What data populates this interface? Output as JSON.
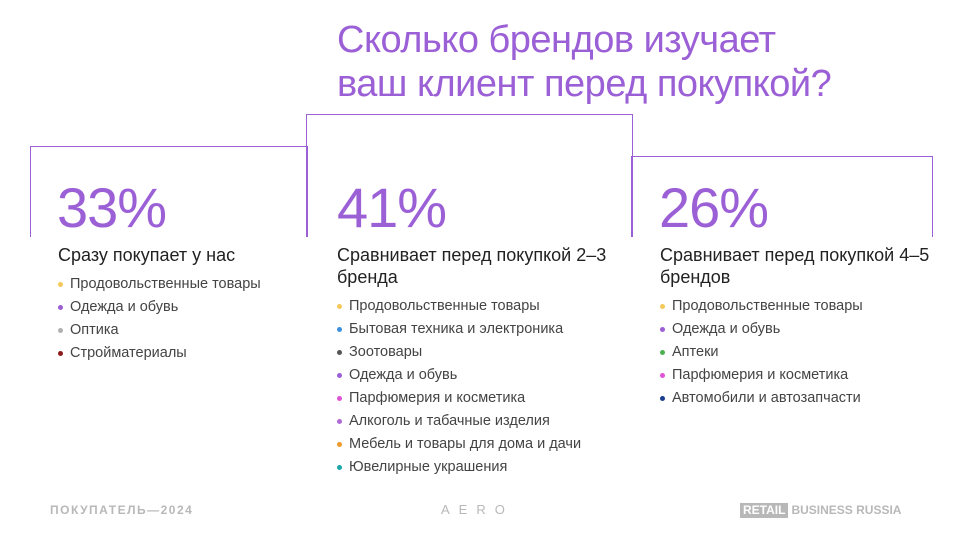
{
  "title": {
    "line1": "Сколько брендов изучает",
    "line2": "ваш клиент перед покупкой?"
  },
  "colors": {
    "accent": "#9b5fd6",
    "text": "#222222",
    "muted": "#b8b8b8"
  },
  "columns": [
    {
      "percent": "33%",
      "subtitle": "Сразу покупает у нас",
      "items": [
        {
          "label": "Продовольственные товары",
          "color": "#f5c85a"
        },
        {
          "label": "Одежда и обувь",
          "color": "#9b5fd6"
        },
        {
          "label": "Оптика",
          "color": "#b0b0b0"
        },
        {
          "label": "Стройматериалы",
          "color": "#8b1a1a"
        }
      ]
    },
    {
      "percent": "41%",
      "subtitle": "Сравнивает перед покупкой 2–3 бренда",
      "items": [
        {
          "label": "Продовольственные товары",
          "color": "#f5c85a"
        },
        {
          "label": "Бытовая техника и электроника",
          "color": "#3d8fe0"
        },
        {
          "label": "Зоотовары",
          "color": "#555555"
        },
        {
          "label": "Одежда и обувь",
          "color": "#9b5fd6"
        },
        {
          "label": "Парфюмерия и косметика",
          "color": "#e052d6"
        },
        {
          "label": "Алкоголь и табачные изделия",
          "color": "#b06ad6"
        },
        {
          "label": "Мебель и товары для дома и дачи",
          "color": "#f09a2a"
        },
        {
          "label": "Ювелирные украшения",
          "color": "#1aa8a8"
        }
      ]
    },
    {
      "percent": "26%",
      "subtitle": "Сравнивает перед покупкой 4–5 брендов",
      "items": [
        {
          "label": "Продовольственные товары",
          "color": "#f5c85a"
        },
        {
          "label": "Одежда и обувь",
          "color": "#9b5fd6"
        },
        {
          "label": "Аптеки",
          "color": "#4caf50"
        },
        {
          "label": "Парфюмерия и косметика",
          "color": "#e052d6"
        },
        {
          "label": "Автомобили и автозапчасти",
          "color": "#1a3d8f"
        }
      ]
    }
  ],
  "footer": {
    "left": "ПОКУПАТЕЛЬ—2024",
    "center": "AERO",
    "right_badge": "RETAIL",
    "right_text": "BUSINESS RUSSIA"
  }
}
